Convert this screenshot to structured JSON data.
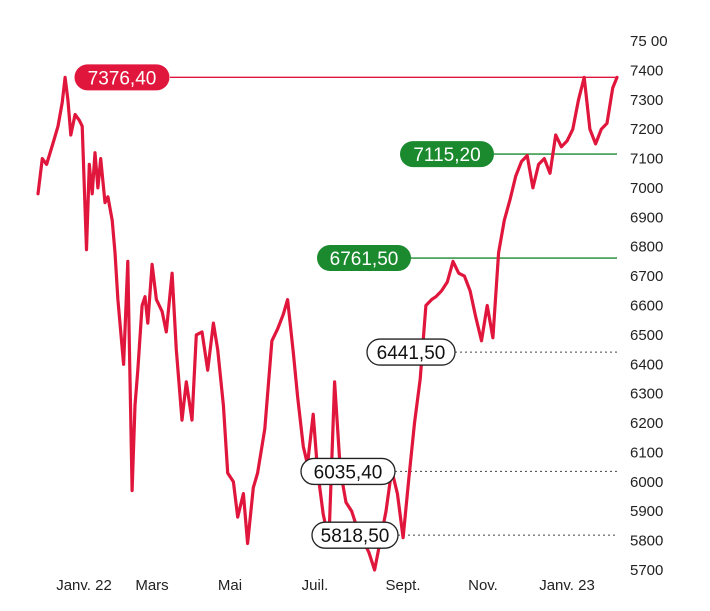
{
  "chart_data": {
    "type": "line",
    "y_ticks": [
      "75 00",
      "7400",
      "7300",
      "7200",
      "7100",
      "7000",
      "6900",
      "6800",
      "6700",
      "6600",
      "6500",
      "6400",
      "6300",
      "6200",
      "6100",
      "6000",
      "5900",
      "5800",
      "5700"
    ],
    "x_ticks": [
      "Janv. 22",
      "Mars",
      "Mai",
      "Juil.",
      "Sept.",
      "Nov.",
      "Janv. 23"
    ],
    "ylim": [
      5700,
      7500
    ],
    "grid": false,
    "colors": {
      "line": "#e0163c",
      "high": "#e0163c",
      "green": "#1b8a2e",
      "neutral": "#ffffff"
    },
    "reference_lines": [
      {
        "label": "7376,40",
        "value": 7376.4,
        "style": "red-solid"
      },
      {
        "label": "7115,20",
        "value": 7115.2,
        "style": "green-solid"
      },
      {
        "label": "6761,50",
        "value": 6761.5,
        "style": "green-solid"
      },
      {
        "label": "6441,50",
        "value": 6441.5,
        "style": "dotted"
      },
      {
        "label": "6035,40",
        "value": 6035.4,
        "style": "dotted"
      },
      {
        "label": "5818,50",
        "value": 5818.5,
        "style": "dotted"
      }
    ],
    "series": [
      {
        "x": [
          "2021-12-24",
          "2021-12-27",
          "2021-12-30",
          "2022-01-04",
          "2022-01-07",
          "2022-01-10",
          "2022-01-12",
          "2022-01-14",
          "2022-01-16",
          "2022-01-19",
          "2022-01-22",
          "2022-01-24",
          "2022-01-27",
          "2022-01-29",
          "2022-01-31",
          "2022-02-02",
          "2022-02-04",
          "2022-02-06",
          "2022-02-09",
          "2022-02-11",
          "2022-02-14",
          "2022-02-16",
          "2022-02-18",
          "2022-02-22",
          "2022-02-25",
          "2022-02-28",
          "2022-03-02",
          "2022-03-04",
          "2022-03-07",
          "2022-03-09",
          "2022-03-11",
          "2022-03-14",
          "2022-03-17",
          "2022-03-21",
          "2022-03-24",
          "2022-03-28",
          "2022-03-31",
          "2022-04-04",
          "2022-04-07",
          "2022-04-11",
          "2022-04-14",
          "2022-04-18",
          "2022-04-22",
          "2022-04-26",
          "2022-04-29",
          "2022-05-03",
          "2022-05-06",
          "2022-05-10",
          "2022-05-13",
          "2022-05-17",
          "2022-05-20",
          "2022-05-24",
          "2022-05-27",
          "2022-06-01",
          "2022-06-06",
          "2022-06-10",
          "2022-06-14",
          "2022-06-17",
          "2022-06-21",
          "2022-06-24",
          "2022-06-28",
          "2022-07-01",
          "2022-07-05",
          "2022-07-08",
          "2022-07-12",
          "2022-07-16",
          "2022-07-20",
          "2022-07-24",
          "2022-07-28",
          "2022-08-01",
          "2022-08-05",
          "2022-08-09",
          "2022-08-13",
          "2022-08-17",
          "2022-08-21",
          "2022-08-25",
          "2022-08-29",
          "2022-09-02",
          "2022-09-06",
          "2022-09-10",
          "2022-09-14",
          "2022-09-18",
          "2022-09-22",
          "2022-09-26",
          "2022-09-29",
          "2022-10-03",
          "2022-10-07",
          "2022-10-11",
          "2022-10-15",
          "2022-10-19",
          "2022-10-23",
          "2022-10-27",
          "2022-10-31",
          "2022-11-04",
          "2022-11-08",
          "2022-11-12",
          "2022-11-16",
          "2022-11-20",
          "2022-11-24",
          "2022-11-28",
          "2022-12-02",
          "2022-12-06",
          "2022-12-10",
          "2022-12-14",
          "2022-12-18",
          "2022-12-22",
          "2022-12-26",
          "2022-12-30",
          "2023-01-03",
          "2023-01-07",
          "2023-01-11",
          "2023-01-15",
          "2023-01-19",
          "2023-01-23",
          "2023-01-27",
          "2023-01-31",
          "2023-02-03"
        ],
        "values": [
          6980,
          7100,
          7080,
          7160,
          7210,
          7290,
          7376,
          7300,
          7180,
          7250,
          7230,
          7210,
          6790,
          7080,
          6980,
          7120,
          7000,
          7100,
          6950,
          6970,
          6890,
          6780,
          6620,
          6400,
          6750,
          5970,
          6260,
          6380,
          6600,
          6630,
          6540,
          6740,
          6620,
          6580,
          6510,
          6710,
          6450,
          6210,
          6340,
          6210,
          6500,
          6510,
          6380,
          6540,
          6450,
          6260,
          6030,
          6000,
          5880,
          5960,
          5790,
          5980,
          6030,
          6180,
          6480,
          6520,
          6570,
          6620,
          6440,
          6290,
          6120,
          6060,
          6230,
          6040,
          5890,
          5800,
          6340,
          6040,
          5930,
          5900,
          5840,
          5800,
          5760,
          5700,
          5800,
          5900,
          6040,
          5960,
          5810,
          6010,
          6200,
          6350,
          6600,
          6620,
          6630,
          6650,
          6680,
          6750,
          6710,
          6700,
          6650,
          6560,
          6480,
          6600,
          6490,
          6780,
          6890,
          6960,
          7040,
          7090,
          7110,
          7000,
          7080,
          7100,
          7050,
          7180,
          7140,
          7160,
          7200,
          7300,
          7376,
          7200,
          7150,
          7200,
          7220,
          7340,
          7376
        ]
      }
    ]
  }
}
